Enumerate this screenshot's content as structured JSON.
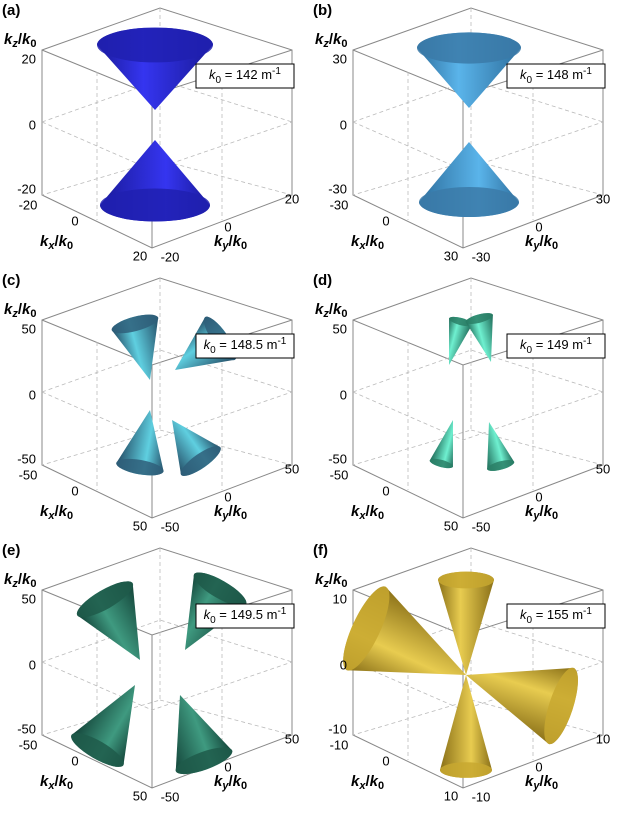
{
  "panels": [
    {
      "label": "(a)",
      "z_axis": {
        "num": "k",
        "num_sub": "z",
        "slash": "/",
        "den": "k",
        "den_sub": "0"
      },
      "x_axis": {
        "num": "k",
        "num_sub": "x",
        "slash": "/",
        "den": "k",
        "den_sub": "0"
      },
      "y_axis": {
        "num": "k",
        "num_sub": "y",
        "slash": "/",
        "den": "k",
        "den_sub": "0"
      },
      "z_ticks": [
        "20",
        "0",
        "-20"
      ],
      "x_ticks": [
        "-20",
        "0",
        "20"
      ],
      "y_ticks": [
        "-20",
        "0",
        "20"
      ],
      "annotation": {
        "symbol": "k",
        "sub": "0",
        "text": " = 142 m",
        "sup": "-1"
      }
    },
    {
      "label": "(b)",
      "z_axis": {
        "num": "k",
        "num_sub": "z",
        "slash": "/",
        "den": "k",
        "den_sub": "0"
      },
      "x_axis": {
        "num": "k",
        "num_sub": "x",
        "slash": "/",
        "den": "k",
        "den_sub": "0"
      },
      "y_axis": {
        "num": "k",
        "num_sub": "y",
        "slash": "/",
        "den": "k",
        "den_sub": "0"
      },
      "z_ticks": [
        "30",
        "0",
        "-30"
      ],
      "x_ticks": [
        "-30",
        "0",
        "30"
      ],
      "y_ticks": [
        "-30",
        "0",
        "30"
      ],
      "annotation": {
        "symbol": "k",
        "sub": "0",
        "text": " = 148 m",
        "sup": "-1"
      }
    },
    {
      "label": "(c)",
      "z_axis": {
        "num": "k",
        "num_sub": "z",
        "slash": "/",
        "den": "k",
        "den_sub": "0"
      },
      "x_axis": {
        "num": "k",
        "num_sub": "x",
        "slash": "/",
        "den": "k",
        "den_sub": "0"
      },
      "y_axis": {
        "num": "k",
        "num_sub": "y",
        "slash": "/",
        "den": "k",
        "den_sub": "0"
      },
      "z_ticks": [
        "50",
        "0",
        "-50"
      ],
      "x_ticks": [
        "-50",
        "0",
        "50"
      ],
      "y_ticks": [
        "-50",
        "0",
        "50"
      ],
      "annotation": {
        "symbol": "k",
        "sub": "0",
        "text": " = 148.5 m",
        "sup": "-1"
      }
    },
    {
      "label": "(d)",
      "z_axis": {
        "num": "k",
        "num_sub": "z",
        "slash": "/",
        "den": "k",
        "den_sub": "0"
      },
      "x_axis": {
        "num": "k",
        "num_sub": "x",
        "slash": "/",
        "den": "k",
        "den_sub": "0"
      },
      "y_axis": {
        "num": "k",
        "num_sub": "y",
        "slash": "/",
        "den": "k",
        "den_sub": "0"
      },
      "z_ticks": [
        "50",
        "0",
        "-50"
      ],
      "x_ticks": [
        "-50",
        "0",
        "50"
      ],
      "y_ticks": [
        "-50",
        "0",
        "50"
      ],
      "annotation": {
        "symbol": "k",
        "sub": "0",
        "text": " = 149 m",
        "sup": "-1"
      }
    },
    {
      "label": "(e)",
      "z_axis": {
        "num": "k",
        "num_sub": "z",
        "slash": "/",
        "den": "k",
        "den_sub": "0"
      },
      "x_axis": {
        "num": "k",
        "num_sub": "x",
        "slash": "/",
        "den": "k",
        "den_sub": "0"
      },
      "y_axis": {
        "num": "k",
        "num_sub": "y",
        "slash": "/",
        "den": "k",
        "den_sub": "0"
      },
      "z_ticks": [
        "50",
        "0",
        "-50"
      ],
      "x_ticks": [
        "-50",
        "0",
        "50"
      ],
      "y_ticks": [
        "-50",
        "0",
        "50"
      ],
      "annotation": {
        "symbol": "k",
        "sub": "0",
        "text": " = 149.5 m",
        "sup": "-1"
      }
    },
    {
      "label": "(f)",
      "z_axis": {
        "num": "k",
        "num_sub": "z",
        "slash": "/",
        "den": "k",
        "den_sub": "0"
      },
      "x_axis": {
        "num": "k",
        "num_sub": "x",
        "slash": "/",
        "den": "k",
        "den_sub": "0"
      },
      "y_axis": {
        "num": "k",
        "num_sub": "y",
        "slash": "/",
        "den": "k",
        "den_sub": "0"
      },
      "z_ticks": [
        "10",
        "0",
        "-10"
      ],
      "x_ticks": [
        "-10",
        "0",
        "10"
      ],
      "y_ticks": [
        "-10",
        "0",
        "10"
      ],
      "annotation": {
        "symbol": "k",
        "sub": "0",
        "text": " = 155 m",
        "sup": "-1"
      }
    }
  ]
}
